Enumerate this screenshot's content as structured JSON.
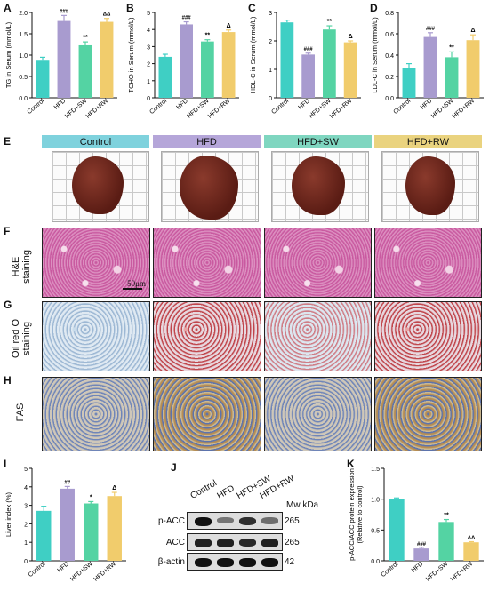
{
  "panel_letters": [
    "A",
    "B",
    "C",
    "D",
    "E",
    "F",
    "G",
    "H",
    "I",
    "J",
    "K"
  ],
  "groups": [
    "Control",
    "HFD",
    "HFD+SW",
    "HFD+RW"
  ],
  "group_colors": [
    "#3fcfc4",
    "#a89bcf",
    "#54d3a3",
    "#f1cc6c"
  ],
  "chart_data": [
    {
      "type": "bar",
      "panel": "A",
      "ylabel": "TG in Serum (mmol/L)",
      "ylim": [
        0,
        2.0
      ],
      "yticks": [
        "0.0",
        "0.5",
        "1.0",
        "1.5",
        "2.0"
      ],
      "categories": [
        "Control",
        "HFD",
        "HFD+SW",
        "HFD+RW"
      ],
      "values": [
        0.87,
        1.8,
        1.23,
        1.78
      ],
      "errors": [
        0.08,
        0.13,
        0.08,
        0.08
      ],
      "annotations": [
        "",
        "###",
        "**",
        "ΔΔ"
      ]
    },
    {
      "type": "bar",
      "panel": "B",
      "ylabel": "TCHO in Serum (mmol/L)",
      "ylim": [
        0,
        5
      ],
      "yticks": [
        "0",
        "1",
        "2",
        "3",
        "4",
        "5"
      ],
      "categories": [
        "Control",
        "HFD",
        "HFD+SW",
        "HFD+RW"
      ],
      "values": [
        2.4,
        4.3,
        3.3,
        3.85
      ],
      "errors": [
        0.15,
        0.15,
        0.1,
        0.12
      ],
      "annotations": [
        "",
        "###",
        "**",
        "Δ"
      ]
    },
    {
      "type": "bar",
      "panel": "C",
      "ylabel": "HDL-C in Serum (mmol/L)",
      "ylim": [
        0,
        3
      ],
      "yticks": [
        "0",
        "1",
        "2",
        "3"
      ],
      "categories": [
        "Control",
        "HFD",
        "HFD+SW",
        "HFD+RW"
      ],
      "values": [
        2.65,
        1.52,
        2.4,
        1.95
      ],
      "errors": [
        0.08,
        0.05,
        0.13,
        0.05
      ],
      "annotations": [
        "",
        "###",
        "**",
        "Δ"
      ]
    },
    {
      "type": "bar",
      "panel": "D",
      "ylabel": "LDL-C in Serum (mmol/L)",
      "ylim": [
        0,
        0.8
      ],
      "yticks": [
        "0.0",
        "0.2",
        "0.4",
        "0.6",
        "0.8"
      ],
      "categories": [
        "Control",
        "HFD",
        "HFD+SW",
        "HFD+RW"
      ],
      "values": [
        0.28,
        0.57,
        0.38,
        0.54
      ],
      "errors": [
        0.04,
        0.04,
        0.05,
        0.05
      ],
      "annotations": [
        "",
        "###",
        "**",
        "Δ"
      ]
    },
    {
      "type": "bar",
      "panel": "I",
      "ylabel": "Liver index (%)",
      "ylim": [
        0,
        5
      ],
      "yticks": [
        "0",
        "1",
        "2",
        "3",
        "4",
        "5"
      ],
      "categories": [
        "Control",
        "HFD",
        "HFD+SW",
        "HFD+RW"
      ],
      "values": [
        2.7,
        3.9,
        3.1,
        3.5
      ],
      "errors": [
        0.25,
        0.12,
        0.1,
        0.2
      ],
      "annotations": [
        "",
        "##",
        "*",
        "Δ"
      ]
    },
    {
      "type": "bar",
      "panel": "K",
      "ylabel": "p-ACC/ACC protein expression\n(Relative to control)",
      "ylim": [
        0,
        1.5
      ],
      "yticks": [
        "0.0",
        "0.5",
        "1.0",
        "1.5"
      ],
      "categories": [
        "Control",
        "HFD",
        "HFD+SW",
        "HFD+RW"
      ],
      "values": [
        1.0,
        0.2,
        0.63,
        0.3
      ],
      "errors": [
        0.02,
        0.02,
        0.04,
        0.01
      ],
      "annotations": [
        "",
        "###",
        "**",
        "ΔΔ"
      ]
    }
  ],
  "row_labels": {
    "F": "H&E\nstaining",
    "G": "Oil red O\nstaining",
    "H": "FAS"
  },
  "scale_bar": "50μm",
  "blot": {
    "lanes": [
      "Control",
      "HFD",
      "HFD+SW",
      "HFD+RW"
    ],
    "mw_header": "Mw kDa",
    "rows": [
      {
        "label": "p-ACC",
        "mw": "265",
        "intensity": [
          1.0,
          0.35,
          0.8,
          0.4
        ]
      },
      {
        "label": "ACC",
        "mw": "265",
        "intensity": [
          0.9,
          0.9,
          0.85,
          0.9
        ]
      },
      {
        "label": "β-actin",
        "mw": "42",
        "intensity": [
          1.0,
          1.0,
          1.0,
          1.0
        ]
      }
    ]
  }
}
